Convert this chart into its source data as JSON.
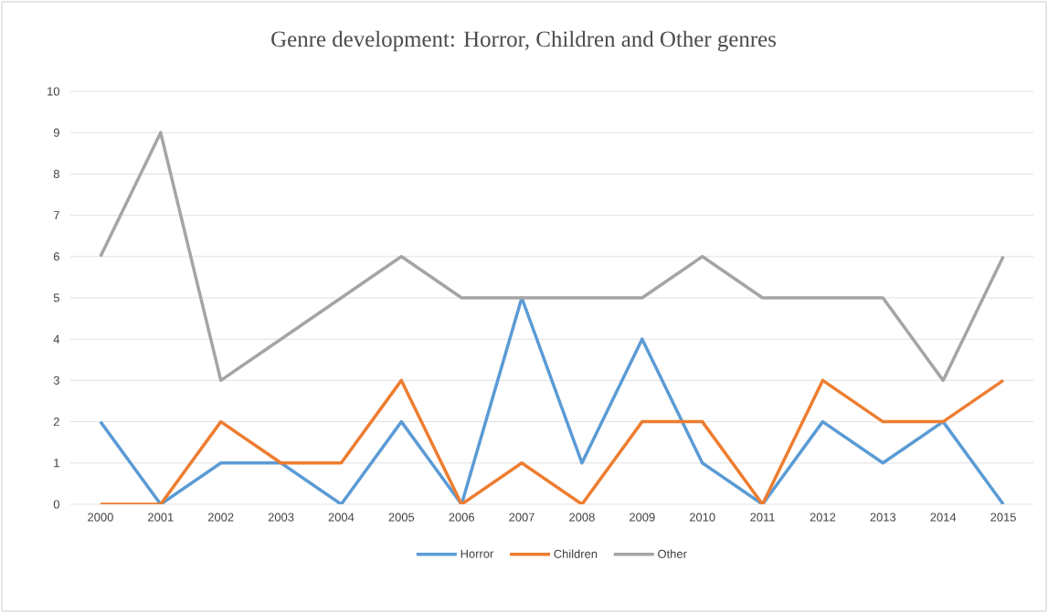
{
  "chart_data": {
    "type": "line",
    "title": "Genre development: Horror, Children and Other genres",
    "categories": [
      "2000",
      "2001",
      "2002",
      "2003",
      "2004",
      "2005",
      "2006",
      "2007",
      "2008",
      "2009",
      "2010",
      "2011",
      "2012",
      "2013",
      "2014",
      "2015"
    ],
    "series": [
      {
        "name": "Horror",
        "color": "#5b9bd5",
        "values": [
          2,
          0,
          1,
          1,
          0,
          2,
          0,
          5,
          1,
          4,
          1,
          0,
          2,
          1,
          2,
          0
        ]
      },
      {
        "name": "Children",
        "color": "#ed7d31",
        "values": [
          0,
          0,
          2,
          1,
          1,
          3,
          0,
          1,
          0,
          2,
          2,
          0,
          3,
          2,
          2,
          3
        ]
      },
      {
        "name": "Other",
        "color": "#a5a5a5",
        "values": [
          6,
          9,
          3,
          4,
          5,
          6,
          5,
          5,
          5,
          5,
          6,
          5,
          5,
          5,
          3,
          6
        ]
      }
    ],
    "ylim": [
      0,
      10
    ],
    "yticks": [
      0,
      1,
      2,
      3,
      4,
      5,
      6,
      7,
      8,
      9,
      10
    ],
    "grid": "y",
    "legend": "bottom"
  }
}
